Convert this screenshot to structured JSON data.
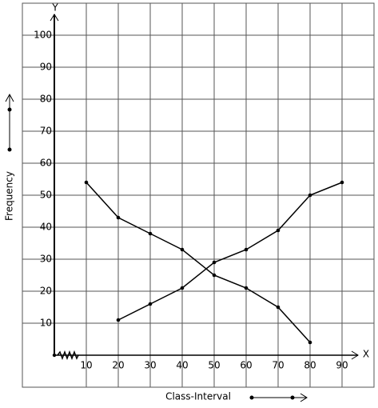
{
  "chart_data": {
    "type": "line",
    "x_label": "Class-Interval",
    "y_label": "Frequency",
    "x_axis_name": "X",
    "y_axis_name": "Y",
    "series": [
      {
        "color": "#000000",
        "x": [
          10,
          20,
          30,
          40,
          50,
          60,
          70,
          80
        ],
        "values": [
          54,
          43,
          38,
          33,
          25,
          21,
          15,
          4
        ]
      },
      {
        "color": "#000000",
        "x": [
          20,
          30,
          40,
          50,
          60,
          70,
          80,
          90
        ],
        "values": [
          11,
          16,
          21,
          29,
          33,
          39,
          50,
          54
        ]
      }
    ],
    "xlim": [
      -10,
      100
    ],
    "ylim": [
      -10,
      110
    ],
    "xticks": [
      10,
      20,
      30,
      40,
      50,
      60,
      70,
      80,
      90
    ],
    "yticks": [
      10,
      20,
      30,
      40,
      50,
      60,
      70,
      80,
      90,
      100
    ],
    "grid": true
  }
}
